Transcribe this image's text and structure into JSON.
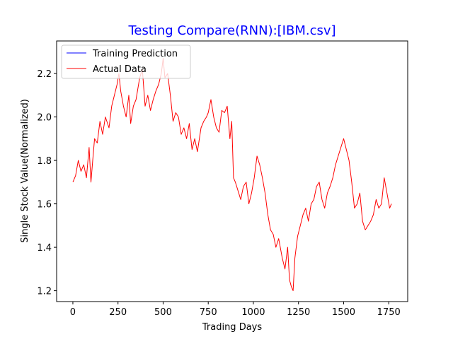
{
  "chart_data": {
    "type": "line",
    "title": "Testing Compare(RNN):[IBM.csv]",
    "xlabel": "Trading Days",
    "ylabel": "Single Stock Value(Normalized)",
    "xlim": [
      -90,
      1855
    ],
    "ylim": [
      1.15,
      2.35
    ],
    "xticks": [
      0,
      250,
      500,
      750,
      1000,
      1250,
      1500,
      1750
    ],
    "yticks": [
      1.2,
      1.4,
      1.6,
      1.8,
      2.0,
      2.2
    ],
    "ytick_labels": [
      "1.2",
      "1.4",
      "1.6",
      "1.8",
      "2.0",
      "2.2"
    ],
    "grid": false,
    "legend_position": "top-left",
    "series": [
      {
        "name": "Training Prediction",
        "color": "#0000ff",
        "x": [],
        "y": []
      },
      {
        "name": "Actual Data",
        "color": "#ff0000",
        "x": [
          0,
          15,
          30,
          45,
          60,
          75,
          90,
          100,
          110,
          120,
          135,
          150,
          165,
          180,
          200,
          215,
          230,
          245,
          255,
          265,
          280,
          295,
          310,
          320,
          335,
          350,
          370,
          385,
          400,
          415,
          430,
          445,
          460,
          475,
          490,
          500,
          510,
          525,
          540,
          555,
          570,
          585,
          600,
          615,
          630,
          645,
          660,
          675,
          690,
          710,
          725,
          740,
          750,
          765,
          780,
          795,
          810,
          825,
          840,
          855,
          870,
          880,
          890,
          900,
          915,
          930,
          945,
          960,
          975,
          990,
          1005,
          1020,
          1035,
          1050,
          1065,
          1080,
          1095,
          1110,
          1125,
          1140,
          1160,
          1175,
          1190,
          1200,
          1210,
          1220,
          1230,
          1245,
          1260,
          1275,
          1290,
          1305,
          1320,
          1335,
          1350,
          1365,
          1380,
          1395,
          1410,
          1425,
          1440,
          1455,
          1470,
          1485,
          1500,
          1515,
          1530,
          1545,
          1560,
          1575,
          1590,
          1605,
          1620,
          1635,
          1650,
          1665,
          1680,
          1695,
          1710,
          1725,
          1740,
          1755,
          1765
        ],
        "y": [
          1.7,
          1.73,
          1.8,
          1.75,
          1.78,
          1.72,
          1.86,
          1.7,
          1.8,
          1.9,
          1.88,
          1.98,
          1.92,
          2.0,
          1.95,
          2.05,
          2.1,
          2.15,
          2.2,
          2.12,
          2.05,
          2.0,
          2.1,
          1.97,
          2.05,
          2.08,
          2.18,
          2.22,
          2.05,
          2.1,
          2.03,
          2.08,
          2.12,
          2.15,
          2.2,
          2.27,
          2.18,
          2.2,
          2.1,
          1.98,
          2.02,
          2.0,
          1.92,
          1.95,
          1.9,
          1.97,
          1.85,
          1.9,
          1.84,
          1.95,
          1.98,
          2.0,
          2.02,
          2.08,
          2.0,
          1.95,
          1.93,
          2.03,
          2.02,
          2.05,
          1.9,
          1.98,
          1.72,
          1.7,
          1.66,
          1.62,
          1.68,
          1.7,
          1.6,
          1.65,
          1.72,
          1.82,
          1.78,
          1.72,
          1.65,
          1.55,
          1.48,
          1.46,
          1.4,
          1.44,
          1.35,
          1.3,
          1.4,
          1.25,
          1.22,
          1.2,
          1.35,
          1.45,
          1.5,
          1.55,
          1.58,
          1.52,
          1.6,
          1.62,
          1.68,
          1.7,
          1.62,
          1.58,
          1.65,
          1.68,
          1.72,
          1.78,
          1.82,
          1.86,
          1.9,
          1.85,
          1.8,
          1.7,
          1.58,
          1.6,
          1.65,
          1.52,
          1.48,
          1.5,
          1.52,
          1.55,
          1.62,
          1.58,
          1.6,
          1.72,
          1.65,
          1.58,
          1.6
        ]
      }
    ]
  }
}
